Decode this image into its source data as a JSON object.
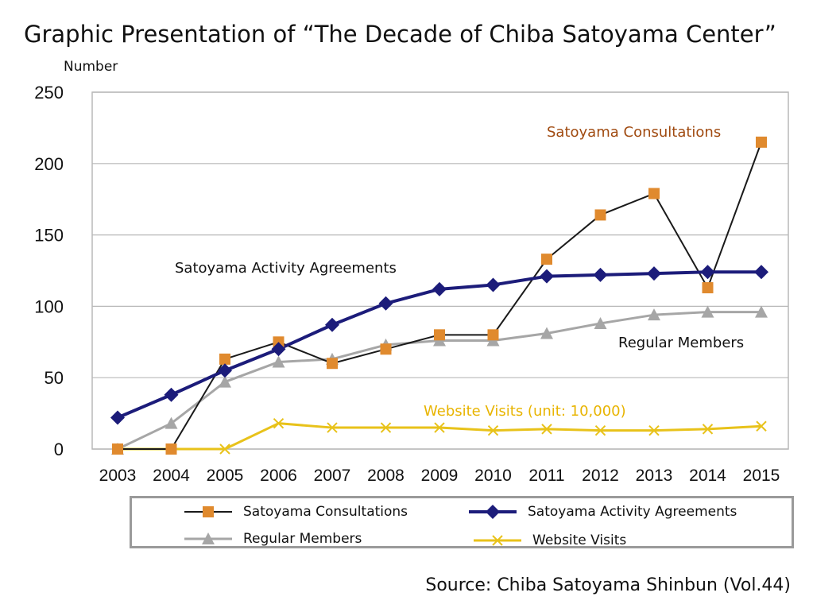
{
  "title": "Graphic Presentation of “The Decade of Chiba Satoyama Center”",
  "ylabel": "Number",
  "source": "Source: Chiba Satoyama Shinbun (Vol.44)",
  "annotations": {
    "consultations": "Satoyama Consultations",
    "agreements": "Satoyama Activity Agreements",
    "members": "Regular Members",
    "website": "Website Visits (unit: 10,000)"
  },
  "colors": {
    "consultations_marker": "#e08a2e",
    "consultations_line": "#1a1a1a",
    "agreements": "#1c1c7a",
    "members": "#a6a6a6",
    "website": "#e8c21a",
    "consultations_annotation": "#a04a10",
    "website_annotation": "#e8b400",
    "grid": "#b8b8b8"
  },
  "legend": [
    {
      "label": "Satoyama Consultations",
      "marker": "square",
      "line_color": "#1a1a1a",
      "marker_color": "#e08a2e"
    },
    {
      "label": "Satoyama Activity Agreements",
      "marker": "diamond",
      "line_color": "#1c1c7a",
      "marker_color": "#1c1c7a"
    },
    {
      "label": "Regular Members",
      "marker": "triangle",
      "line_color": "#a6a6a6",
      "marker_color": "#a6a6a6"
    },
    {
      "label": "Website Visits",
      "marker": "x",
      "line_color": "#e8c21a",
      "marker_color": "#e8c21a"
    }
  ],
  "chart_data": {
    "type": "line",
    "title": "Graphic Presentation of “The Decade of Chiba Satoyama Center”",
    "xlabel": "",
    "ylabel": "Number",
    "categories": [
      "2003",
      "2004",
      "2005",
      "2006",
      "2007",
      "2008",
      "2009",
      "2010",
      "2011",
      "2012",
      "2013",
      "2014",
      "2015"
    ],
    "ylim": [
      0,
      250
    ],
    "yticks": [
      0,
      50,
      100,
      150,
      200,
      250
    ],
    "grid": "horizontal",
    "legend_position": "bottom",
    "series": [
      {
        "name": "Satoyama Consultations",
        "values": [
          0,
          0,
          63,
          75,
          60,
          70,
          80,
          80,
          133,
          164,
          179,
          113,
          215
        ]
      },
      {
        "name": "Satoyama Activity Agreements",
        "values": [
          22,
          38,
          55,
          70,
          87,
          102,
          112,
          115,
          121,
          122,
          123,
          124,
          124
        ]
      },
      {
        "name": "Regular Members",
        "values": [
          0,
          18,
          47,
          61,
          63,
          73,
          76,
          76,
          81,
          88,
          94,
          96,
          96
        ]
      },
      {
        "name": "Website Visits",
        "values": [
          0,
          0,
          0,
          18,
          15,
          15,
          15,
          13,
          14,
          13,
          13,
          14,
          16
        ]
      }
    ]
  }
}
